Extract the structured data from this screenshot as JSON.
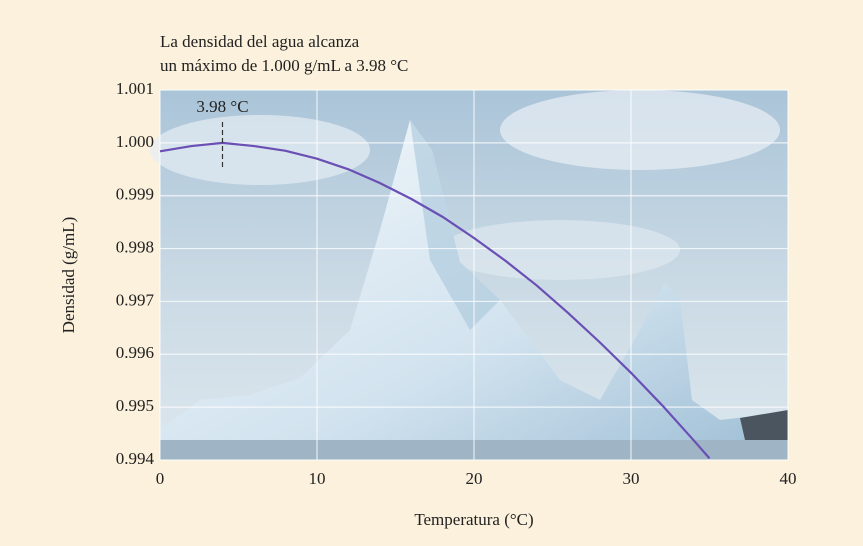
{
  "chart_data": {
    "type": "line",
    "title": [
      "La densidad del agua alcanza",
      "un máximo de 1.000 g/mL a 3.98 °C"
    ],
    "x_label": "Temperatura (°C)",
    "y_label": "Densidad (g/mL)",
    "x": [
      0,
      2,
      3.98,
      6,
      8,
      10,
      12,
      14,
      16,
      18,
      20,
      22,
      24,
      26,
      28,
      30,
      32,
      34,
      35
    ],
    "values": [
      0.99984,
      0.99994,
      1.0,
      0.99994,
      0.99985,
      0.9997,
      0.9995,
      0.99924,
      0.99894,
      0.9986,
      0.9982,
      0.99777,
      0.9973,
      0.99678,
      0.99623,
      0.99565,
      0.99503,
      0.99437,
      0.99403
    ],
    "color": "#6a4fb4",
    "xlim": [
      0,
      40
    ],
    "xticks": [
      0,
      10,
      20,
      30,
      40
    ],
    "ylim": [
      0.994,
      1.001
    ],
    "yticks": [
      0.994,
      0.995,
      0.996,
      0.997,
      0.998,
      0.999,
      {
        "value": 1,
        "label": "1.000"
      },
      1.001
    ],
    "grid": true,
    "annotation": {
      "text": "3.98 °C",
      "x": 3.98
    }
  }
}
